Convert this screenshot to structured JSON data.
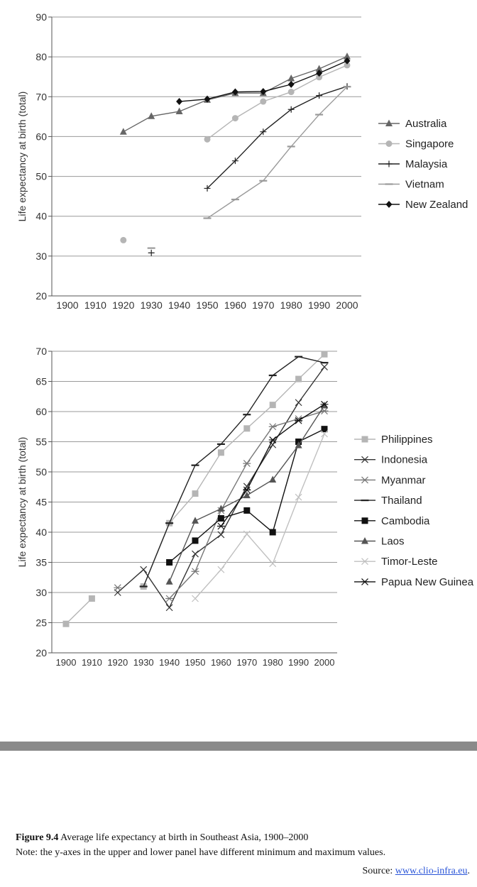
{
  "chart_data": [
    {
      "type": "line",
      "title": "",
      "xlabel": "",
      "ylabel": "Life expectancy at birth (total)",
      "ylim": [
        20,
        90
      ],
      "yticks": [
        20,
        30,
        40,
        50,
        60,
        70,
        80,
        90
      ],
      "x": [
        1900,
        1910,
        1920,
        1930,
        1940,
        1950,
        1960,
        1970,
        1980,
        1990,
        2000
      ],
      "x_tick_labels": [
        "1900",
        "1910",
        "1920",
        "1930",
        "1940",
        "1950",
        "1960",
        "1970",
        "1980",
        "1990",
        "2000"
      ],
      "grid": true,
      "legend": "right",
      "series": [
        {
          "name": "Australia",
          "marker": "triangle",
          "color": "#666666",
          "points": [
            [
              1920,
              61.2
            ],
            [
              1930,
              65.1
            ],
            [
              1940,
              66.3
            ],
            [
              1950,
              69.2
            ],
            [
              1960,
              70.9
            ],
            [
              1970,
              70.9
            ],
            [
              1980,
              74.6
            ],
            [
              1990,
              77.0
            ],
            [
              2000,
              80.1
            ]
          ]
        },
        {
          "name": "Singapore",
          "marker": "circle",
          "color": "#b5b5b5",
          "points": [
            [
              1920,
              34.0
            ],
            [
              1950,
              59.3
            ],
            [
              1960,
              64.6
            ],
            [
              1970,
              68.8
            ],
            [
              1980,
              71.2
            ],
            [
              1990,
              74.9
            ],
            [
              2000,
              77.9
            ]
          ]
        },
        {
          "name": "Malaysia",
          "marker": "plus",
          "color": "#222222",
          "points": [
            [
              1930,
              30.8
            ],
            [
              1950,
              47.0
            ],
            [
              1960,
              53.9
            ],
            [
              1970,
              61.2
            ],
            [
              1980,
              66.8
            ],
            [
              1990,
              70.3
            ],
            [
              2000,
              72.6
            ]
          ]
        },
        {
          "name": "Vietnam",
          "marker": "dash",
          "color": "#9a9a9a",
          "points": [
            [
              1930,
              32.0
            ],
            [
              1950,
              39.5
            ],
            [
              1960,
              44.2
            ],
            [
              1970,
              48.9
            ],
            [
              1980,
              57.5
            ],
            [
              1990,
              65.5
            ],
            [
              2000,
              72.5
            ]
          ]
        },
        {
          "name": "New Zealand",
          "marker": "diamond",
          "color": "#111111",
          "points": [
            [
              1940,
              68.8
            ],
            [
              1950,
              69.4
            ],
            [
              1960,
              71.2
            ],
            [
              1970,
              71.3
            ],
            [
              1980,
              73.1
            ],
            [
              1990,
              75.9
            ],
            [
              2000,
              79.0
            ]
          ]
        }
      ]
    },
    {
      "type": "line",
      "title": "",
      "xlabel": "",
      "ylabel": "Life expectancy at birth (total)",
      "ylim": [
        20,
        70
      ],
      "yticks": [
        20,
        25,
        30,
        35,
        40,
        45,
        50,
        55,
        60,
        65,
        70
      ],
      "x": [
        1900,
        1910,
        1920,
        1930,
        1940,
        1950,
        1960,
        1970,
        1980,
        1990,
        2000
      ],
      "x_tick_labels": [
        "1900",
        "1910",
        "1920",
        "1930",
        "1940",
        "1950",
        "1960",
        "1970",
        "1980",
        "1990",
        "2000"
      ],
      "grid": true,
      "legend": "right",
      "series": [
        {
          "name": "Philippines",
          "marker": "square",
          "color": "#b5b5b5",
          "points": [
            [
              1900,
              24.8
            ],
            [
              1910,
              29.0
            ],
            [
              1930,
              31.0
            ],
            [
              1940,
              41.5
            ],
            [
              1950,
              46.4
            ],
            [
              1960,
              53.2
            ],
            [
              1970,
              57.2
            ],
            [
              1980,
              61.1
            ],
            [
              1990,
              65.4
            ],
            [
              2000,
              69.5
            ]
          ]
        },
        {
          "name": "Indonesia",
          "marker": "x",
          "color": "#333333",
          "points": [
            [
              1920,
              30.0
            ],
            [
              1930,
              33.8
            ],
            [
              1940,
              27.5
            ],
            [
              1950,
              36.4
            ],
            [
              1960,
              39.6
            ],
            [
              1970,
              47.6
            ],
            [
              1980,
              54.5
            ],
            [
              1990,
              61.5
            ],
            [
              2000,
              67.4
            ]
          ]
        },
        {
          "name": "Myanmar",
          "marker": "asterisk",
          "color": "#777777",
          "points": [
            [
              1920,
              30.8
            ],
            [
              1940,
              29.0
            ],
            [
              1950,
              33.5
            ],
            [
              1960,
              43.6
            ],
            [
              1970,
              51.4
            ],
            [
              1980,
              57.5
            ],
            [
              1990,
              58.8
            ],
            [
              2000,
              60.1
            ]
          ]
        },
        {
          "name": "Thailand",
          "marker": "dash",
          "color": "#222222",
          "points": [
            [
              1930,
              31.0
            ],
            [
              1940,
              41.5
            ],
            [
              1950,
              51.1
            ],
            [
              1960,
              54.6
            ],
            [
              1970,
              59.5
            ],
            [
              1980,
              66.0
            ],
            [
              1990,
              69.1
            ],
            [
              2000,
              68.1
            ]
          ]
        },
        {
          "name": "Cambodia",
          "marker": "square",
          "color": "#111111",
          "points": [
            [
              1940,
              35.0
            ],
            [
              1950,
              38.6
            ],
            [
              1960,
              42.3
            ],
            [
              1970,
              43.6
            ],
            [
              1980,
              40.0
            ],
            [
              1990,
              55.0
            ],
            [
              2000,
              57.1
            ]
          ]
        },
        {
          "name": "Laos",
          "marker": "triangle",
          "color": "#555555",
          "points": [
            [
              1940,
              31.8
            ],
            [
              1950,
              41.9
            ],
            [
              1960,
              43.9
            ],
            [
              1970,
              46.1
            ],
            [
              1980,
              48.7
            ],
            [
              1990,
              54.4
            ],
            [
              2000,
              61.0
            ]
          ]
        },
        {
          "name": "Timor-Leste",
          "marker": "x",
          "color": "#c0c0c0",
          "points": [
            [
              1950,
              29.0
            ],
            [
              1960,
              33.8
            ],
            [
              1970,
              39.7
            ],
            [
              1980,
              34.8
            ],
            [
              1990,
              45.8
            ],
            [
              2000,
              56.3
            ]
          ]
        },
        {
          "name": "Papua New Guinea",
          "marker": "asterisk",
          "color": "#111111",
          "points": [
            [
              1960,
              41.0
            ],
            [
              1970,
              47.0
            ],
            [
              1980,
              55.3
            ],
            [
              1990,
              58.5
            ],
            [
              2000,
              61.2
            ]
          ]
        }
      ]
    }
  ],
  "caption": {
    "figure_label": "Figure 9.4",
    "figure_text": "Average life expectancy at birth in Southeast Asia, 1900–2000",
    "note": "Note: the y-axes in the upper and lower panel have different minimum and maximum values."
  },
  "source": {
    "label": "Source:",
    "link_text": "www.clio-infra.eu"
  }
}
